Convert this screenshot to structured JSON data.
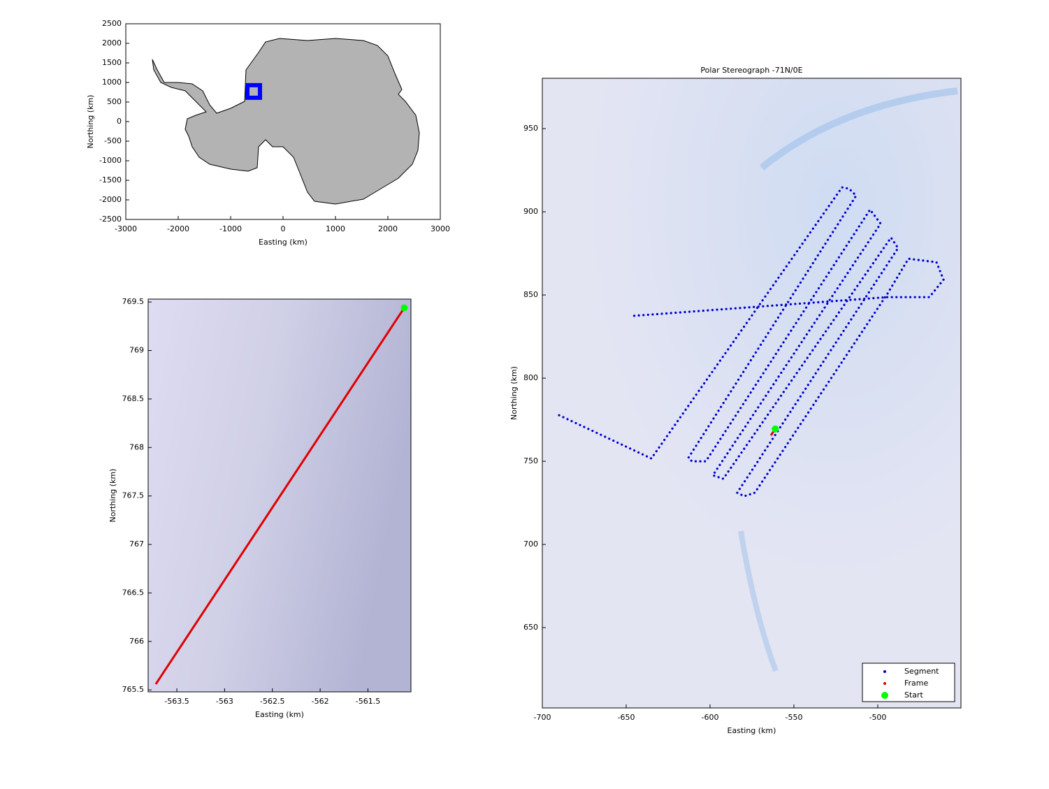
{
  "chart_data": [
    {
      "type": "map",
      "xlabel": "Easting (km)",
      "ylabel": "Northing (km)",
      "xlim": [
        -3000,
        3000
      ],
      "ylim": [
        -2500,
        2500
      ],
      "xticks": [
        -3000,
        -2000,
        -1000,
        0,
        1000,
        2000,
        3000
      ],
      "yticks": [
        -2500,
        -2000,
        -1500,
        -1000,
        -500,
        0,
        500,
        1000,
        1500,
        2000,
        2500
      ],
      "series": [
        {
          "color": "#0000ff",
          "marker": "square",
          "x": [
            -560
          ],
          "y": [
            770
          ]
        }
      ]
    },
    {
      "type": "line",
      "xlabel": "Easting (km)",
      "ylabel": "Northing (km)",
      "xlim": [
        -563.8,
        -561.05
      ],
      "ylim": [
        765.48,
        769.53
      ],
      "xticks": [
        -563.5,
        -563,
        -562.5,
        -562,
        -561.5
      ],
      "yticks": [
        765.5,
        766,
        766.5,
        767,
        767.5,
        768,
        768.5,
        769,
        769.5
      ],
      "series": [
        {
          "color": "#e00000",
          "style": "line",
          "x": [
            -563.72,
            -561.12
          ],
          "y": [
            765.56,
            769.44
          ]
        },
        {
          "color": "#00ff00",
          "marker": "circle",
          "x": [
            -561.12
          ],
          "y": [
            769.44
          ]
        }
      ]
    },
    {
      "type": "map",
      "title": "Polar Stereograph -71N/0E",
      "xlabel": "Easting (km)",
      "ylabel": "Northing (km)",
      "xlim": [
        -700,
        -450.4
      ],
      "ylim": [
        601.7,
        980.3
      ],
      "xticks": [
        -700,
        -650,
        -600,
        -550,
        -500
      ],
      "yticks": [
        650,
        700,
        750,
        800,
        850,
        900,
        950
      ],
      "legend": "lower right",
      "series": [
        {
          "name": "Segment",
          "color": "#0000cc",
          "style": "dots",
          "x": [
            -690,
            -635,
            -521.3,
            -517.1,
            -512.9,
            -612.9,
            -610.8,
            -602.5,
            -504.6,
            -498.3,
            -598.3,
            -592.1,
            -492.1,
            -487.9,
            -583.8,
            -579.6,
            -573.3,
            -494.2,
            -481.7,
            -465,
            -460.8,
            -469.2,
            -494.2,
            -646.3
          ],
          "y": [
            777.7,
            751.7,
            914.7,
            913.9,
            909.7,
            752.1,
            750,
            750,
            901.3,
            892.9,
            741.6,
            739.5,
            884.5,
            878.2,
            731.1,
            729,
            731.1,
            850.8,
            871.8,
            869.7,
            859.2,
            848.7,
            848.7,
            837.4
          ]
        },
        {
          "name": "Frame",
          "color": "#e00000",
          "style": "line",
          "x": [
            -563.72,
            -561.12
          ],
          "y": [
            765.56,
            769.44
          ]
        },
        {
          "name": "Start",
          "color": "#00ff00",
          "marker": "circle",
          "x": [
            -561.12
          ],
          "y": [
            769.44
          ]
        }
      ]
    }
  ]
}
